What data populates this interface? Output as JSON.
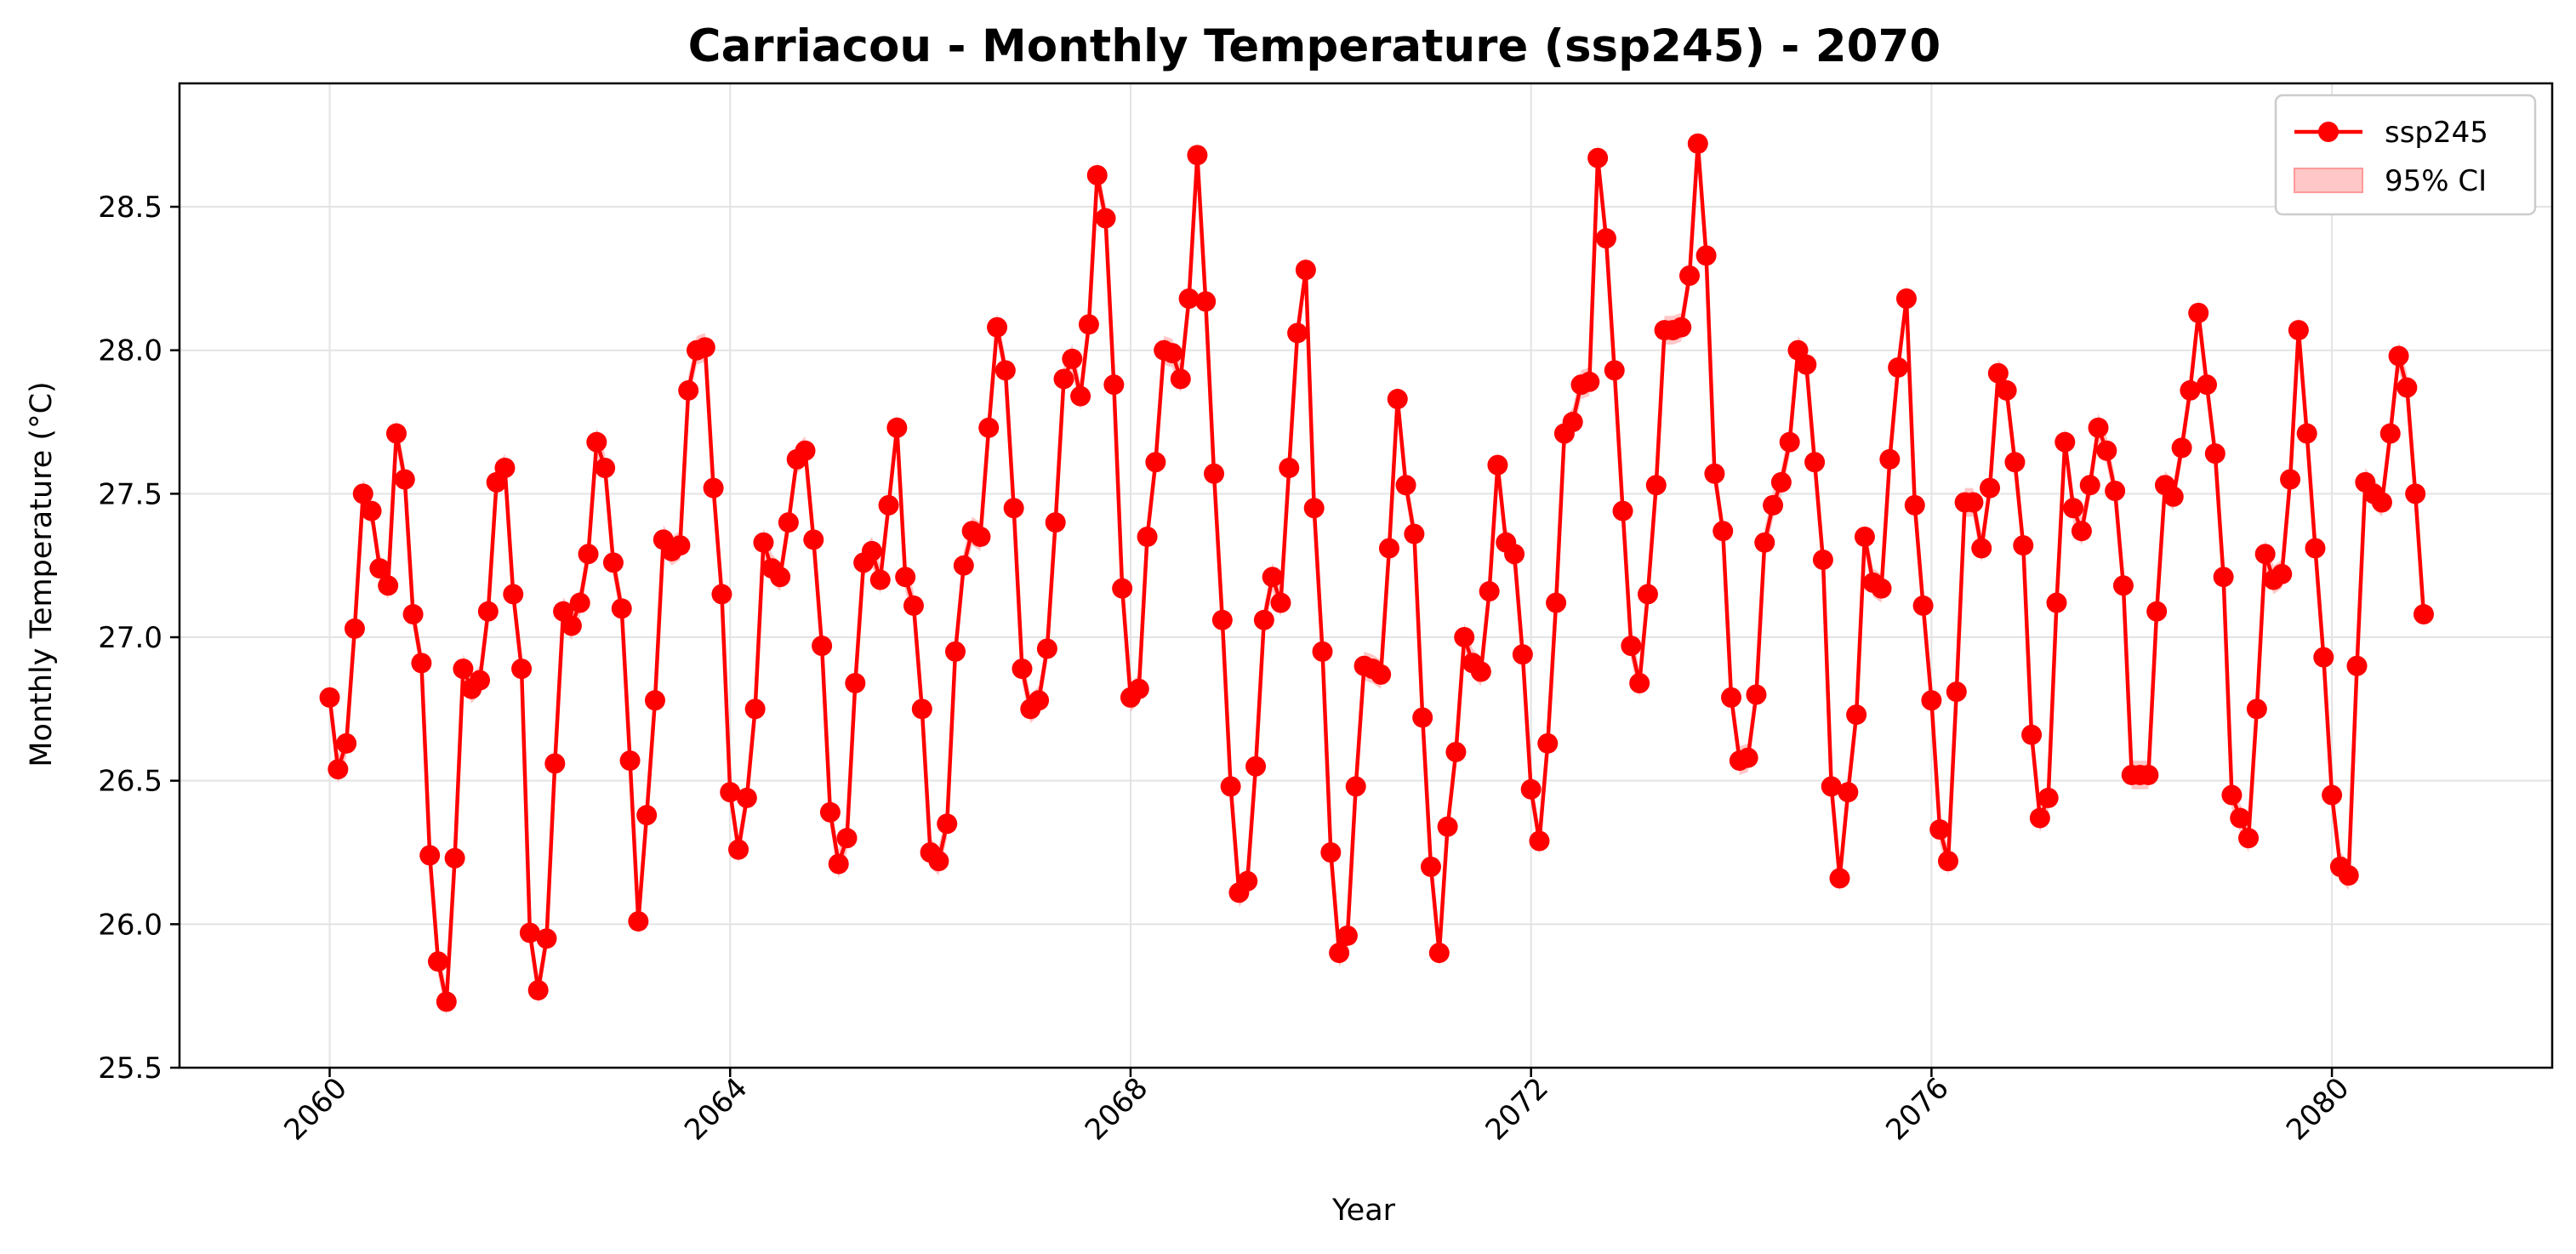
{
  "chart_data": {
    "type": "line",
    "title": "Carriacou - Monthly Temperature (ssp245) - 2070",
    "xlabel": "Year",
    "ylabel": "Monthly Temperature (°C)",
    "xlim": [
      2058.5,
      2082.2
    ],
    "ylim": [
      25.5,
      28.93
    ],
    "x_ticks": [
      2060,
      2064,
      2068,
      2072,
      2076,
      2080
    ],
    "y_ticks": [
      25.5,
      26.0,
      26.5,
      27.0,
      27.5,
      28.0,
      28.5
    ],
    "x_start": 2060,
    "x_step_per_point": 0.0833333,
    "grid": true,
    "legend_position": "top-right",
    "colors": {
      "line": "#ff0000",
      "ci": "#ff9999",
      "grid": "#e3e3e3",
      "frame": "#000000"
    },
    "series": [
      {
        "name": "ssp245",
        "ci_label": "95% CI",
        "ci_halfwidth": 0.05,
        "values": [
          26.79,
          26.54,
          26.63,
          27.03,
          27.5,
          27.44,
          27.24,
          27.18,
          27.71,
          27.55,
          27.08,
          26.91,
          26.24,
          25.87,
          25.73,
          26.23,
          26.89,
          26.82,
          26.85,
          27.09,
          27.54,
          27.59,
          27.15,
          26.89,
          25.97,
          25.77,
          25.95,
          26.56,
          27.09,
          27.04,
          27.12,
          27.29,
          27.68,
          27.59,
          27.26,
          27.1,
          26.57,
          26.01,
          26.38,
          26.78,
          27.34,
          27.3,
          27.32,
          27.86,
          28.0,
          28.01,
          27.52,
          27.15,
          26.46,
          26.26,
          26.44,
          26.75,
          27.33,
          27.24,
          27.21,
          27.4,
          27.62,
          27.65,
          27.34,
          26.97,
          26.39,
          26.21,
          26.3,
          26.84,
          27.26,
          27.3,
          27.2,
          27.46,
          27.73,
          27.21,
          27.11,
          26.75,
          26.25,
          26.22,
          26.35,
          26.95,
          27.25,
          27.37,
          27.35,
          27.73,
          28.08,
          27.93,
          27.45,
          26.89,
          26.75,
          26.78,
          26.96,
          27.4,
          27.9,
          27.97,
          27.84,
          28.09,
          28.61,
          28.46,
          27.88,
          27.17,
          26.79,
          26.82,
          27.35,
          27.61,
          28.0,
          27.99,
          27.9,
          28.18,
          28.68,
          28.17,
          27.57,
          27.06,
          26.48,
          26.11,
          26.15,
          26.55,
          27.06,
          27.21,
          27.12,
          27.59,
          28.06,
          28.28,
          27.45,
          26.95,
          26.25,
          25.9,
          25.96,
          26.48,
          26.9,
          26.89,
          26.87,
          27.31,
          27.83,
          27.53,
          27.36,
          26.72,
          26.2,
          25.9,
          26.34,
          26.6,
          27.0,
          26.91,
          26.88,
          27.16,
          27.6,
          27.33,
          27.29,
          26.94,
          26.47,
          26.29,
          26.63,
          27.12,
          27.71,
          27.75,
          27.88,
          27.89,
          28.67,
          28.39,
          27.93,
          27.44,
          26.97,
          26.84,
          27.15,
          27.53,
          28.07,
          28.07,
          28.08,
          28.26,
          28.72,
          28.33,
          27.57,
          27.37,
          26.79,
          26.57,
          26.58,
          26.8,
          27.33,
          27.46,
          27.54,
          27.68,
          28.0,
          27.95,
          27.61,
          27.27,
          26.48,
          26.16,
          26.46,
          26.73,
          27.35,
          27.19,
          27.17,
          27.62,
          27.94,
          28.18,
          27.46,
          27.11,
          26.78,
          26.33,
          26.22,
          26.81,
          27.47,
          27.47,
          27.31,
          27.52,
          27.92,
          27.86,
          27.61,
          27.32,
          26.66,
          26.37,
          26.44,
          27.12,
          27.68,
          27.45,
          27.37,
          27.53,
          27.73,
          27.65,
          27.51,
          27.18,
          26.52,
          26.52,
          26.52,
          27.09,
          27.53,
          27.49,
          27.66,
          27.86,
          28.13,
          27.88,
          27.64,
          27.21,
          26.45,
          26.37,
          26.3,
          26.75,
          27.29,
          27.2,
          27.22,
          27.55,
          28.07,
          27.71,
          27.31,
          26.93,
          26.45,
          26.2,
          26.17,
          26.9,
          27.54,
          27.5,
          27.47,
          27.71,
          27.98,
          27.87,
          27.5,
          27.08
        ]
      }
    ]
  }
}
